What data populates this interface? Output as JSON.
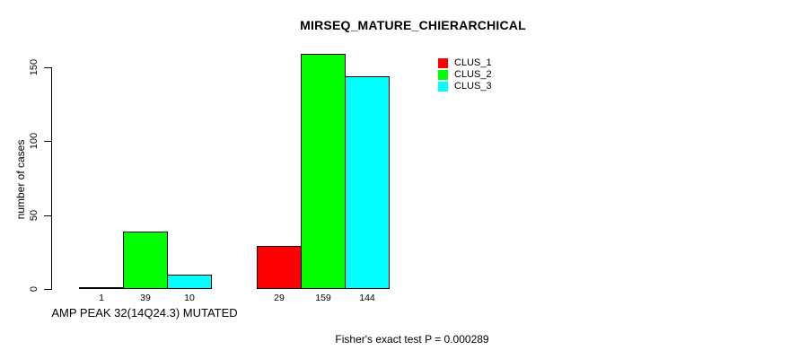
{
  "figure": {
    "background": "#ffffff",
    "text_color": "#000000"
  },
  "chart_data": {
    "type": "bar",
    "title": "MIRSEQ_MATURE_CHIERARCHICAL",
    "xlabel": "AMP PEAK 32(14Q24.3) MUTATED",
    "ylabel": "number of cases",
    "footnote": "Fisher's exact test P = 0.000289",
    "ylim": [
      0,
      150
    ],
    "yticks": [
      0,
      50,
      100,
      150
    ],
    "grid": false,
    "legend_position": "top-right",
    "show_values_under_bars": true,
    "num_groups": 2,
    "series": [
      {
        "name": "CLUS_1",
        "color": "#ff0000",
        "values": [
          1,
          29
        ]
      },
      {
        "name": "CLUS_2",
        "color": "#00ff00",
        "values": [
          39,
          159
        ]
      },
      {
        "name": "CLUS_3",
        "color": "#00ffff",
        "values": [
          10,
          144
        ]
      }
    ]
  }
}
